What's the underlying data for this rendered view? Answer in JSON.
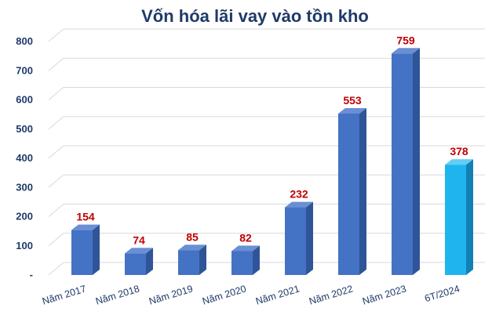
{
  "chart_data": {
    "type": "bar",
    "title": "Vốn hóa lãi vay vào tồn kho",
    "categories": [
      "Năm 2017",
      "Năm 2018",
      "Năm 2019",
      "Năm 2020",
      "Năm 2021",
      "Năm 2022",
      "Năm 2023",
      "6T/2024"
    ],
    "values": [
      154,
      74,
      85,
      82,
      232,
      553,
      759,
      378
    ],
    "data_labels": [
      "154",
      "74",
      "85",
      "82",
      "232",
      "553",
      "759",
      "378"
    ],
    "ylim": [
      0,
      800
    ],
    "yticks": [
      "-",
      "100",
      "200",
      "300",
      "400",
      "500",
      "600",
      "700",
      "800"
    ],
    "xlabel": "",
    "ylabel": "",
    "grid": true,
    "legend": "none",
    "style": "3d-columns",
    "colors": {
      "bar_front": "#4472c4",
      "bar_side": "#2f5597",
      "bar_top": "#6a8fd4",
      "highlight_front": "#1fb4ee",
      "highlight_side": "#1380b3",
      "highlight_top": "#62cdf5",
      "data_label": "#c00000",
      "axis_text": "#1f3a68"
    },
    "highlight_index": 7
  }
}
